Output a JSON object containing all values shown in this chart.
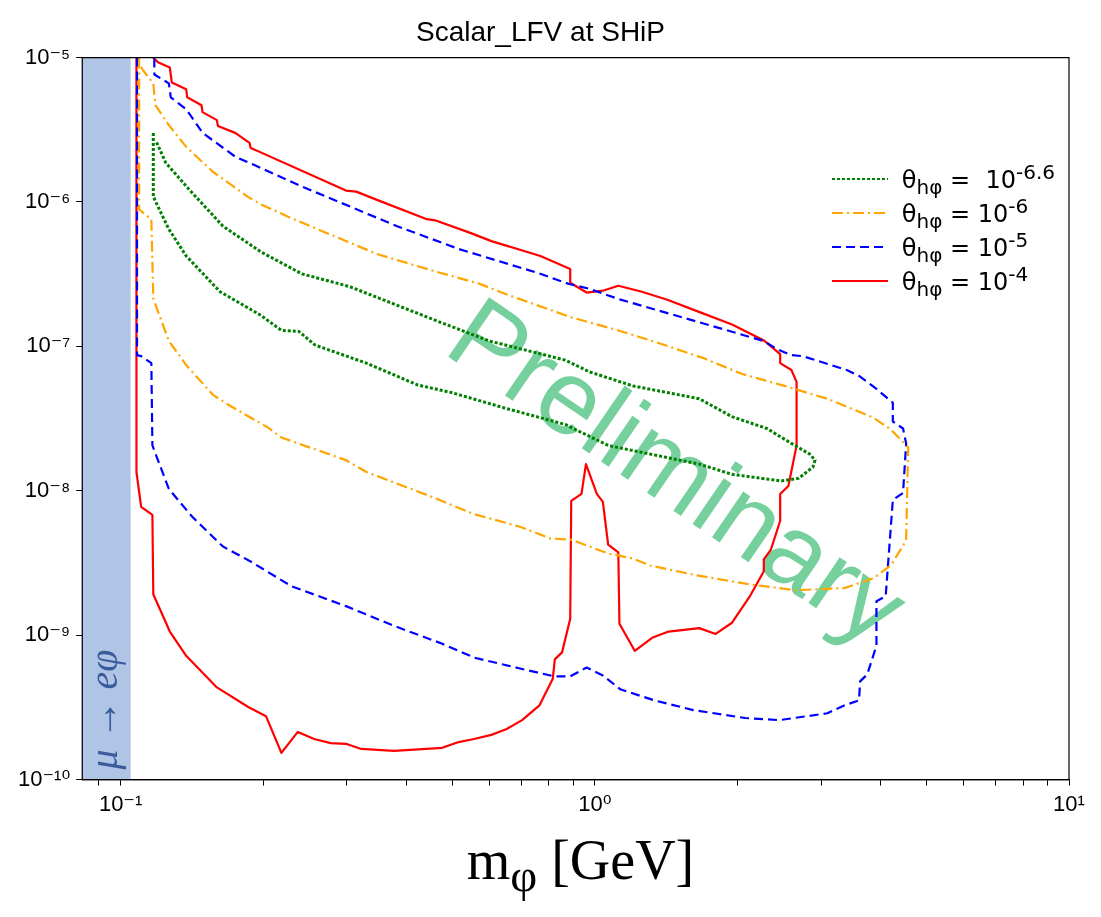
{
  "chart_data": {
    "type": "line",
    "title": "Scalar_LFV at SHiP",
    "xlabel": "m$_{φ}$ [GeV]",
    "log": "xy",
    "grid": false,
    "marker": "none",
    "legend": "top right",
    "xlim": [
      0.083,
      10
    ],
    "ylim": [
      1e-10,
      1e-05
    ],
    "xticks": [
      {
        "value": 0.09,
        "label": null
      },
      {
        "value": 0.1,
        "label": "10⁻¹"
      },
      {
        "value": 0.2,
        "label": null
      },
      {
        "value": 0.3,
        "label": null
      },
      {
        "value": 0.4,
        "label": null
      },
      {
        "value": 0.5,
        "label": null
      },
      {
        "value": 0.6,
        "label": null
      },
      {
        "value": 0.7,
        "label": null
      },
      {
        "value": 0.8,
        "label": null
      },
      {
        "value": 0.9,
        "label": null
      },
      {
        "value": 1,
        "label": "10⁰"
      },
      {
        "value": 2,
        "label": null
      },
      {
        "value": 3,
        "label": null
      },
      {
        "value": 4,
        "label": null
      },
      {
        "value": 5,
        "label": null
      },
      {
        "value": 6,
        "label": null
      },
      {
        "value": 7,
        "label": null
      },
      {
        "value": 8,
        "label": null
      },
      {
        "value": 9,
        "label": null
      },
      {
        "value": 10,
        "label": "10¹"
      }
    ],
    "yticks": [
      {
        "value": 1e-10,
        "label": "10⁻¹⁰"
      },
      {
        "value": 1e-09,
        "label": "10⁻⁹"
      },
      {
        "value": 1e-08,
        "label": "10⁻⁸"
      },
      {
        "value": 1e-07,
        "label": "10⁻⁷"
      },
      {
        "value": 1e-06,
        "label": "10⁻⁶"
      },
      {
        "value": 1e-05,
        "label": "10⁻⁵"
      }
    ],
    "bands": [
      {
        "axis": "x",
        "from": 0.083,
        "to": 0.105,
        "label": "μ → eφ",
        "color": "#b0c4e6"
      }
    ],
    "annotations": [
      "Preliminary"
    ],
    "series": [
      {
        "name": "θ$_{hφ}$ =  10$^{-6.6}$",
        "color": "#008000",
        "line_style": "dotted",
        "x": [
          0.1172,
          0.1172,
          0.1264,
          0.1375,
          0.1621,
          0.1977,
          0.2183,
          0.2376,
          0.2573,
          0.3299,
          0.4229,
          0.5011,
          0.6424,
          0.8659,
          1.067,
          1.661,
          1.947,
          2.472,
          2.69,
          2.884,
          2.913,
          2.842,
          2.598,
          2.306,
          1.947,
          1.661,
          1.202,
          0.976,
          0.8659,
          0.5993,
          0.4672,
          0.3046,
          0.2412,
          0.1977,
          0.1644,
          0.1395,
          0.1245,
          0.119
        ],
        "values": [
          3.01e-06,
          1.09e-06,
          6.48e-07,
          4.23e-07,
          2.39e-07,
          1.64e-07,
          1.29e-07,
          1.27e-07,
          1.02e-07,
          7.66e-08,
          5.41e-08,
          4.77e-08,
          3.76e-08,
          2.88e-08,
          2.06e-08,
          1.53e-08,
          1.3e-08,
          1.17e-08,
          1.22e-08,
          1.46e-08,
          1.63e-08,
          1.79e-08,
          2.13e-08,
          2.7e-08,
          3.26e-08,
          4.34e-08,
          5.33e-08,
          6.65e-08,
          8.04e-08,
          1.09e-07,
          1.49e-07,
          2.59e-07,
          3.18e-07,
          4.51e-07,
          6.8e-07,
          1.22e-06,
          1.87e-06,
          2.61e-06
        ]
      },
      {
        "name": "θ$_{hφ}$ = 10$^{-6}$",
        "color": "#ffa500",
        "line_style": "dashdot",
        "x": [
          0.1094,
          0.1094,
          0.1161,
          0.1172,
          0.1264,
          0.1375,
          0.1565,
          0.1702,
          0.2046,
          0.2183,
          0.2987,
          0.3299,
          0.4536,
          0.5534,
          0.6954,
          0.8074,
          0.8919,
          1.067,
          1.202,
          1.308,
          1.636,
          2.119,
          2.651,
          3.365,
          3.868,
          4.209,
          4.535,
          4.58,
          4.209,
          3.868,
          3.093,
          2.51,
          2.046,
          1.694,
          1.382,
          1.121,
          0.8919,
          0.6616,
          0.57,
          0.4558,
          0.3467,
          0.2664,
          0.2317,
          0.1977,
          0.1853,
          0.1565,
          0.1375,
          0.1264,
          0.1184,
          0.1172,
          0.1116,
          0.11
        ],
        "values": [
          1e-05,
          8.89e-07,
          7.6e-07,
          2.14e-07,
          1.09e-07,
          7.43e-08,
          4.62e-08,
          3.88e-08,
          2.74e-08,
          2.34e-08,
          1.63e-08,
          1.35e-08,
          9.07e-09,
          6.93e-09,
          5.64e-09,
          4.67e-09,
          4.59e-09,
          3.68e-09,
          3.4e-09,
          3.04e-09,
          2.6e-09,
          2.25e-09,
          2.05e-09,
          2.12e-09,
          2.48e-09,
          3.04e-09,
          4.52e-09,
          2e-08,
          2.66e-08,
          3.21e-08,
          4.34e-08,
          5.33e-08,
          6.44e-08,
          8.3e-08,
          1.04e-07,
          1.29e-07,
          1.59e-07,
          2.25e-07,
          2.72e-07,
          3.34e-07,
          4.37e-07,
          6.28e-07,
          7.6e-07,
          9.63e-07,
          1.09e-06,
          1.62e-06,
          2.41e-06,
          3.41e-06,
          4.68e-06,
          6.63e-06,
          8.14e-06,
          8.81e-06
        ]
      },
      {
        "name": "θ$_{hφ}$ = 10$^{-5}$",
        "color": "#0000ff",
        "line_style": "dashed",
        "x": [
          0.1083,
          0.1083,
          0.1105,
          0.1161,
          0.1167,
          0.1264,
          0.1416,
          0.1644,
          0.188,
          0.2295,
          0.2987,
          0.3774,
          0.4767,
          0.5562,
          0.6954,
          0.8236,
          0.8875,
          0.961,
          1.04,
          1.132,
          1.334,
          1.612,
          2.077,
          2.448,
          3.093,
          3.365,
          3.608,
          3.626,
          3.754,
          3.926,
          3.926,
          4.106,
          4.251,
          4.467,
          4.535,
          4.467,
          4.251,
          4.251,
          3.926,
          3.608,
          3.399,
          2.744,
          2.598,
          2.424,
          2.272,
          1.816,
          1.132,
          0.971,
          0.878,
          0.757,
          0.5163,
          0.383,
          0.2412,
          0.1909,
          0.1745,
          0.1489,
          0.1375,
          0.1276,
          0.1264,
          0.1178,
          0.1178
        ],
        "values": [
          1e-05,
          8.7e-08,
          8.56e-08,
          7.66e-08,
          2.06e-08,
          1.03e-08,
          6.61e-09,
          4.11e-09,
          3.24e-09,
          2.18e-09,
          1.59e-09,
          1.16e-09,
          8.73e-10,
          7e-10,
          5.88e-10,
          5.18e-10,
          5.18e-10,
          5.97e-10,
          5.26e-10,
          4.22e-10,
          3.54e-10,
          3.03e-10,
          2.67e-10,
          2.58e-10,
          2.88e-10,
          3.27e-10,
          3.54e-10,
          4.79e-10,
          5.35e-10,
          8.46e-10,
          1.72e-09,
          1.86e-09,
          8.65e-09,
          9.66e-09,
          2.13e-08,
          2.7e-08,
          3.02e-08,
          4.07e-08,
          5.08e-08,
          6.24e-08,
          6.86e-08,
          8.56e-08,
          8.7e-08,
          9.57e-08,
          1.09e-07,
          1.35e-07,
          2.11e-07,
          2.51e-07,
          2.72e-07,
          3.23e-07,
          4.73e-07,
          6.8e-07,
          1.28e-06,
          1.81e-06,
          2.06e-06,
          3.01e-06,
          4.39e-06,
          5.31e-06,
          6.63e-06,
          7.64e-06,
          1e-05
        ]
      },
      {
        "name": "θ$_{hφ}$ = 10$^{-4}$",
        "color": "#ff0000",
        "line_style": "solid",
        "x": [
          0.108,
          0.108,
          0.1105,
          0.1167,
          0.1172,
          0.127,
          0.1375,
          0.1596,
          0.1862,
          0.2026,
          0.2183,
          0.2364,
          0.256,
          0.2773,
          0.2987,
          0.3218,
          0.3774,
          0.4767,
          0.5163,
          0.5562,
          0.6051,
          0.652,
          0.7025,
          0.7645,
          0.8154,
          0.8236,
          0.8528,
          0.8875,
          0.8919,
          0.9374,
          0.958,
          1.01,
          1.04,
          1.067,
          1.121,
          1.127,
          1.214,
          1.321,
          1.431,
          1.661,
          1.798,
          1.947,
          2.119,
          2.272,
          2.272,
          2.352,
          2.46,
          2.46,
          2.56,
          2.664,
          2.664,
          2.598,
          2.46,
          2.46,
          2.272,
          1.947,
          1.669,
          1.417,
          1.257,
          1.121,
          1.04,
          0.961,
          0.8875,
          0.8875,
          0.768,
          0.6051,
          0.548,
          0.4605,
          0.4425,
          0.3538,
          0.3139,
          0.2987,
          0.188,
          0.187,
          0.1745,
          0.1604,
          0.1596,
          0.1489,
          0.1481,
          0.1382,
          0.1375,
          0.1282,
          0.127,
          0.1202,
          0.117
        ],
        "values": [
          1e-05,
          1.35e-08,
          7.74e-09,
          6.82e-09,
          1.92e-09,
          1.06e-09,
          7.2e-10,
          4.35e-10,
          3.17e-10,
          2.75e-10,
          1.53e-10,
          2.14e-10,
          1.91e-10,
          1.79e-10,
          1.77e-10,
          1.63e-10,
          1.58e-10,
          1.66e-10,
          1.82e-10,
          1.91e-10,
          2.04e-10,
          2.24e-10,
          2.58e-10,
          3.27e-10,
          5e-10,
          6.8e-10,
          7.6e-10,
          1.3e-09,
          8.51e-09,
          9.51e-09,
          1.53e-08,
          9.51e-09,
          8.38e-09,
          4.24e-09,
          3.74e-09,
          1.2e-09,
          7.8e-10,
          9.6e-10,
          1.06e-09,
          1.12e-09,
          1.02e-09,
          1.22e-09,
          1.84e-09,
          2.77e-09,
          3.35e-09,
          3.92e-09,
          6.2e-09,
          9.51e-09,
          1.08e-08,
          2.06e-08,
          5.68e-08,
          6.86e-08,
          7.66e-08,
          8.84e-08,
          1.1e-07,
          1.42e-07,
          1.72e-07,
          2.11e-07,
          2.39e-07,
          2.63e-07,
          2.43e-07,
          2.36e-07,
          2.76e-07,
          3.44e-07,
          4.23e-07,
          5.36e-07,
          6.09e-07,
          7.47e-07,
          7.6e-07,
          1.01e-06,
          1.18e-06,
          1.2e-06,
          2.37e-06,
          2.57e-06,
          3.01e-06,
          3.36e-06,
          3.69e-06,
          4.19e-06,
          4.68e-06,
          5.31e-06,
          6.03e-06,
          6.73e-06,
          8.54e-06,
          9.24e-06,
          1e-05
        ]
      }
    ]
  }
}
